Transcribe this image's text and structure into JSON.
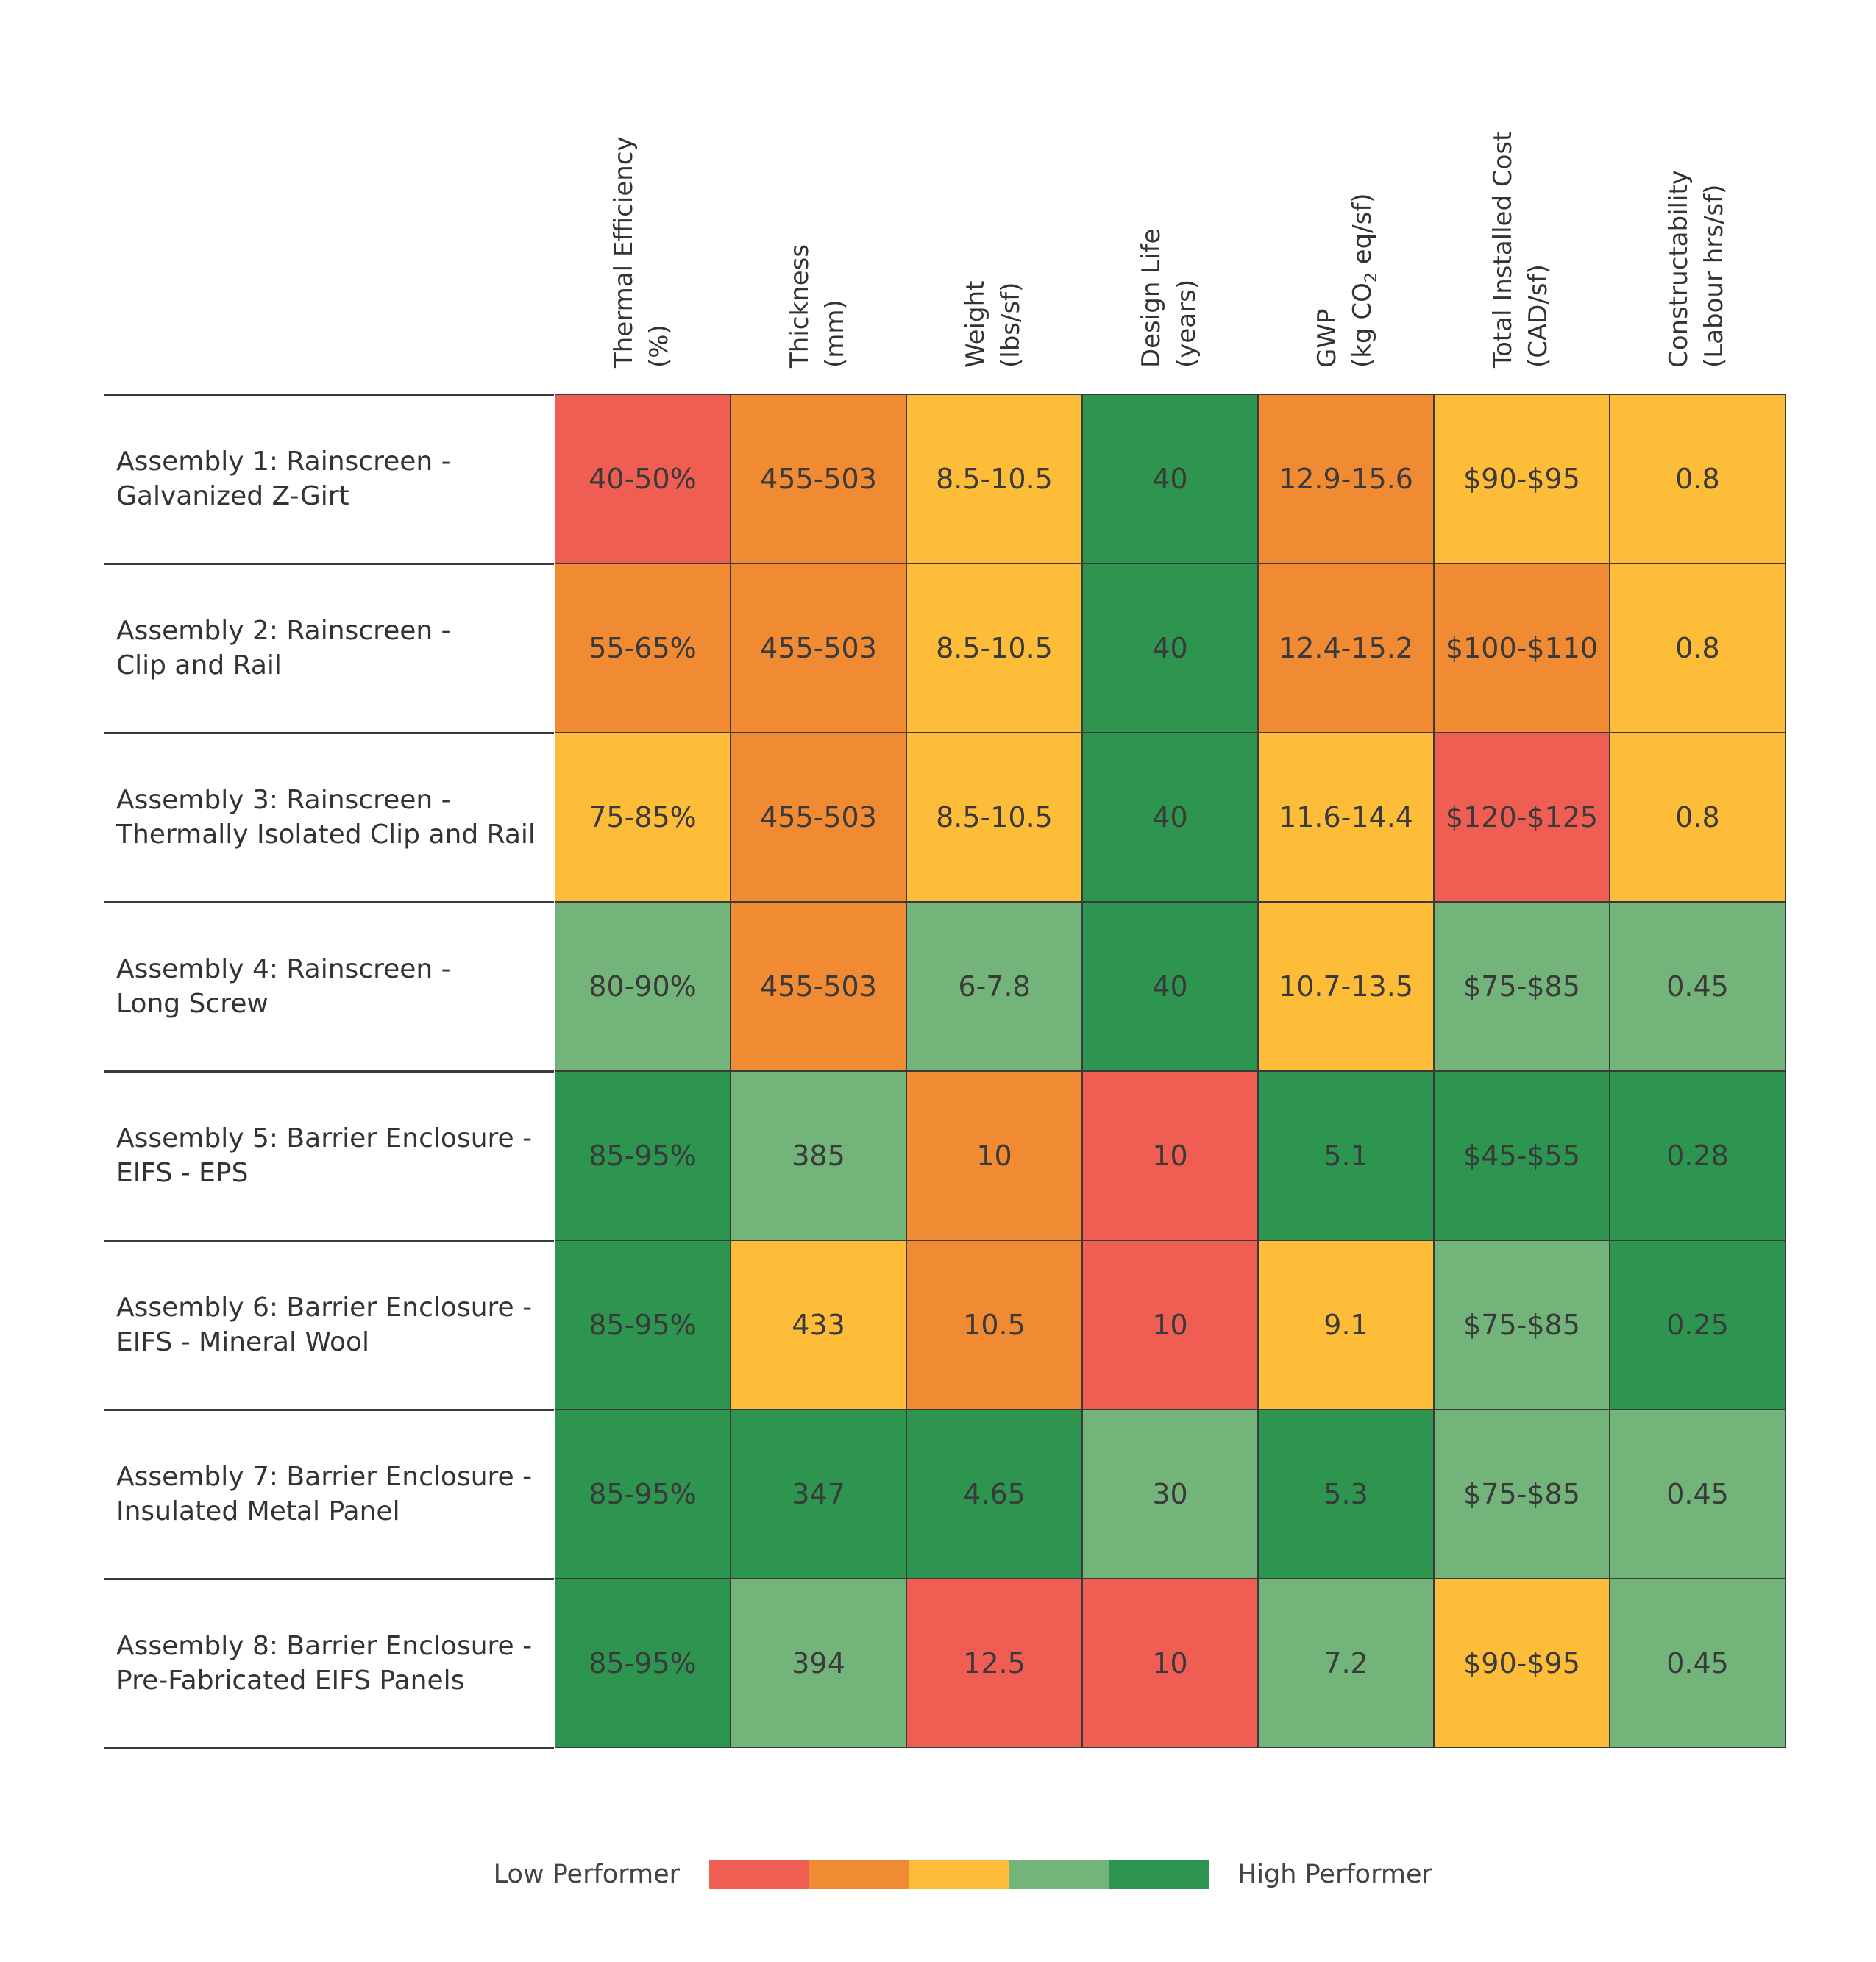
{
  "chart_data": {
    "type": "heatmap",
    "title": "",
    "columns": [
      {
        "line1": "Thermal Efficiency",
        "line2": "(%)"
      },
      {
        "line1": "Thickness",
        "line2": "(mm)"
      },
      {
        "line1": "Weight",
        "line2": "(lbs/sf)"
      },
      {
        "line1": "Design Life",
        "line2": "(years)"
      },
      {
        "line1": "GWP",
        "line2_pre": "(kg CO",
        "line2_sub": "2",
        "line2_post": " eq/sf)"
      },
      {
        "line1": "Total Installed Cost",
        "line2": "(CAD/sf)"
      },
      {
        "line1": "Constructability",
        "line2": "(Labour hrs/sf)"
      }
    ],
    "rows": [
      {
        "label_line1": "Assembly 1: Rainscreen -",
        "label_line2": "Galvanized Z-Girt",
        "values": [
          "40-50%",
          "455-503",
          "8.5-10.5",
          "40",
          "12.9-15.6",
          "$90-$95",
          "0.8"
        ],
        "ratings": [
          1,
          2,
          3,
          5,
          2,
          3,
          3
        ]
      },
      {
        "label_line1": "Assembly 2: Rainscreen -",
        "label_line2": "Clip and Rail",
        "values": [
          "55-65%",
          "455-503",
          "8.5-10.5",
          "40",
          "12.4-15.2",
          "$100-$110",
          "0.8"
        ],
        "ratings": [
          2,
          2,
          3,
          5,
          2,
          2,
          3
        ]
      },
      {
        "label_line1": "Assembly 3: Rainscreen -",
        "label_line2": "Thermally Isolated Clip and Rail",
        "values": [
          "75-85%",
          "455-503",
          "8.5-10.5",
          "40",
          "11.6-14.4",
          "$120-$125",
          "0.8"
        ],
        "ratings": [
          3,
          2,
          3,
          5,
          3,
          1,
          3
        ]
      },
      {
        "label_line1": "Assembly 4: Rainscreen -",
        "label_line2": "Long Screw",
        "values": [
          "80-90%",
          "455-503",
          "6-7.8",
          "40",
          "10.7-13.5",
          "$75-$85",
          "0.45"
        ],
        "ratings": [
          4,
          2,
          4,
          5,
          3,
          4,
          4
        ]
      },
      {
        "label_line1": "Assembly 5: Barrier Enclosure -",
        "label_line2": "EIFS - EPS",
        "values": [
          "85-95%",
          "385",
          "10",
          "10",
          "5.1",
          "$45-$55",
          "0.28"
        ],
        "ratings": [
          5,
          4,
          2,
          1,
          5,
          5,
          5
        ]
      },
      {
        "label_line1": "Assembly 6: Barrier Enclosure -",
        "label_line2": "EIFS - Mineral Wool",
        "values": [
          "85-95%",
          "433",
          "10.5",
          "10",
          "9.1",
          "$75-$85",
          "0.25"
        ],
        "ratings": [
          5,
          3,
          2,
          1,
          3,
          4,
          5
        ]
      },
      {
        "label_line1": "Assembly 7: Barrier Enclosure -",
        "label_line2": "Insulated Metal Panel",
        "values": [
          "85-95%",
          "347",
          "4.65",
          "30",
          "5.3",
          "$75-$85",
          "0.45"
        ],
        "ratings": [
          5,
          5,
          5,
          4,
          5,
          4,
          4
        ]
      },
      {
        "label_line1": "Assembly 8: Barrier Enclosure -",
        "label_line2": "Pre-Fabricated EIFS Panels",
        "values": [
          "85-95%",
          "394",
          "12.5",
          "10",
          "7.2",
          "$90-$95",
          "0.45"
        ],
        "ratings": [
          5,
          4,
          1,
          1,
          4,
          3,
          4
        ]
      }
    ],
    "scale_colors": [
      "#EF5D53",
      "#F08A33",
      "#FDBD39",
      "#73B47B",
      "#2E9550"
    ],
    "legend": {
      "low_label": "Low Performer",
      "high_label": "High Performer",
      "placement": "bottom-center"
    }
  }
}
